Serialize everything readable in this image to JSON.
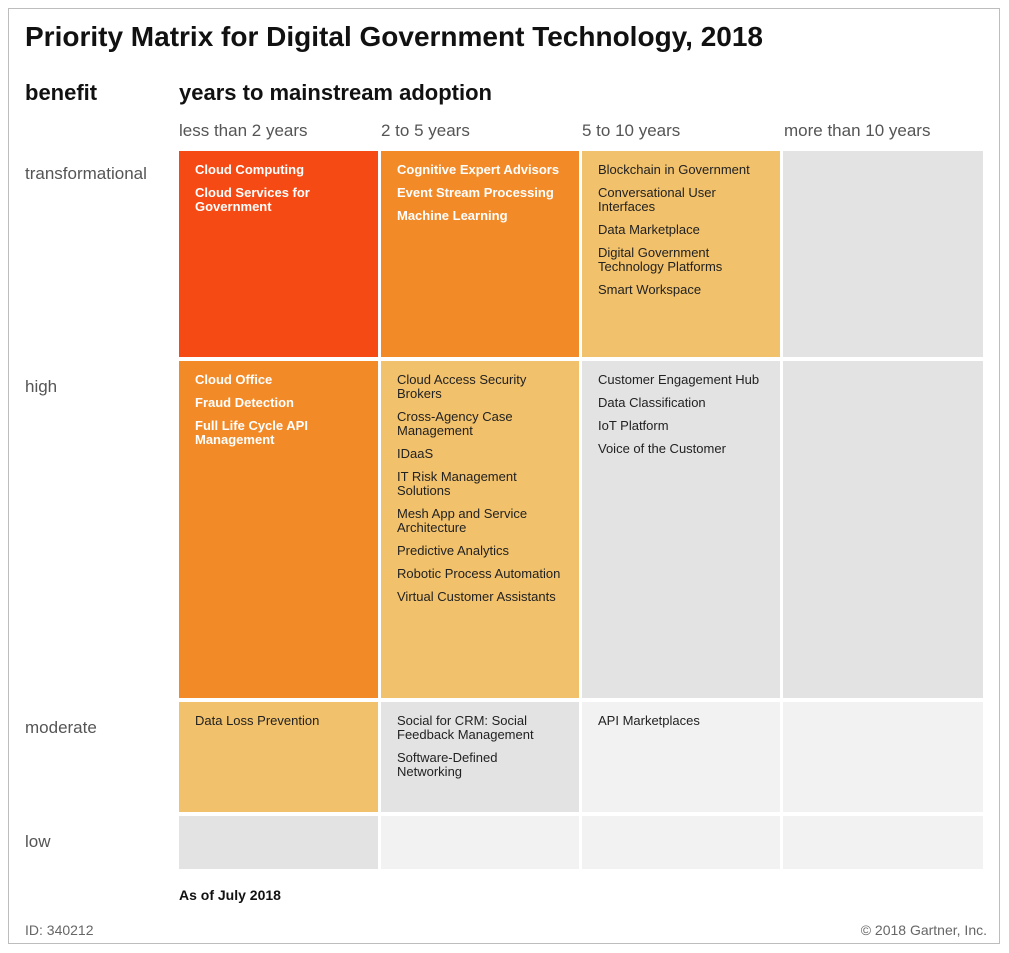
{
  "title": "Priority Matrix for Digital Government Technology, 2018",
  "axis": {
    "benefit_label": "benefit",
    "years_label": "years to mainstream adoption"
  },
  "columns": [
    "less than 2 years",
    "2 to 5 years",
    "5 to 10 years",
    "more than 10 years"
  ],
  "rows": [
    "transformational",
    "high",
    "moderate",
    "low"
  ],
  "colors": {
    "red": "#f54a14",
    "orange": "#f28a28",
    "amber": "#f1c16b",
    "gray": "#e3e3e3",
    "light": "#f2f2f2"
  },
  "cells": {
    "transformational": {
      "lt2": [
        "Cloud Computing",
        "Cloud Services for Government"
      ],
      "2to5": [
        "Cognitive Expert Advisors",
        "Event Stream Processing",
        "Machine Learning"
      ],
      "5to10": [
        "Blockchain in Government",
        "Conversational User Interfaces",
        "Data Marketplace",
        "Digital Government Technology Platforms",
        "Smart Workspace"
      ],
      "gt10": []
    },
    "high": {
      "lt2": [
        "Cloud Office",
        "Fraud Detection",
        "Full Life Cycle API Management"
      ],
      "2to5": [
        "Cloud Access Security Brokers",
        "Cross-Agency Case Management",
        "IDaaS",
        "IT Risk Management Solutions",
        "Mesh App and Service Architecture",
        "Predictive Analytics",
        "Robotic Process Automation",
        "Virtual Customer Assistants"
      ],
      "5to10": [
        "Customer Engagement Hub",
        "Data Classification",
        "IoT Platform",
        "Voice of the Customer"
      ],
      "gt10": []
    },
    "moderate": {
      "lt2": [
        "Data Loss Prevention"
      ],
      "2to5": [
        "Social for CRM: Social Feedback Management",
        "Software-Defined Networking"
      ],
      "5to10": [
        "API Marketplaces"
      ],
      "gt10": []
    },
    "low": {
      "lt2": [],
      "2to5": [],
      "5to10": [],
      "gt10": []
    }
  },
  "footer": {
    "as_of": "As of July 2018",
    "id": "ID: 340212",
    "copyright": "© 2018 Gartner, Inc."
  }
}
